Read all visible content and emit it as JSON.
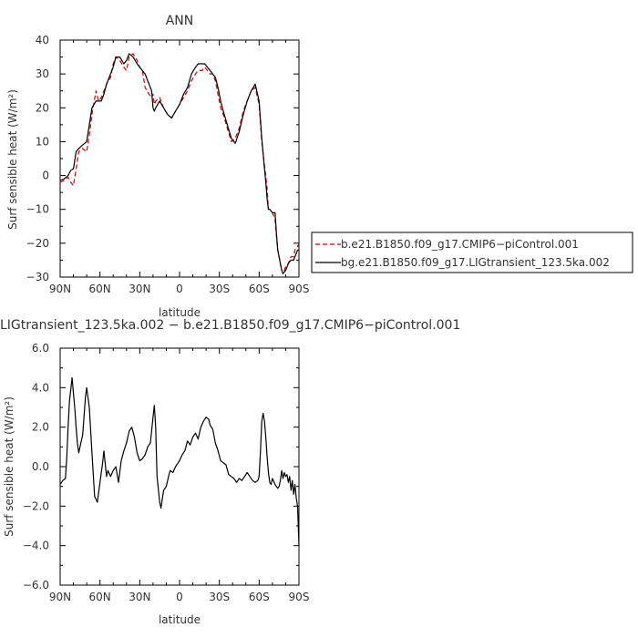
{
  "chart_data": [
    {
      "type": "line",
      "title": "ANN",
      "xlabel": "latitude",
      "ylabel": "Surf sensible heat (W/m²)",
      "xlim": [
        90,
        -90
      ],
      "ylim": [
        -30,
        40
      ],
      "xticks": [
        90,
        60,
        30,
        0,
        -30,
        -60,
        -90
      ],
      "xtick_labels": [
        "90N",
        "60N",
        "30N",
        "0",
        "30S",
        "60S",
        "90S"
      ],
      "yticks": [
        40,
        30,
        20,
        10,
        0,
        -10,
        -20,
        -30
      ],
      "ytick_labels": [
        "40",
        "30",
        "20",
        "10",
        "0",
        "−10",
        "−20",
        "−30"
      ],
      "legend_position": "right",
      "series": [
        {
          "name": "b.e21.B1850.f09_g17.CMIP6−piControl.001",
          "color": "#cc0000",
          "style": "dashed",
          "x": [
            90,
            87,
            84,
            82,
            80,
            78,
            76,
            73,
            70,
            68,
            66,
            63,
            61,
            59,
            57,
            55,
            52,
            50,
            48,
            45,
            42,
            40,
            38,
            35,
            32,
            30,
            28,
            26,
            23,
            21,
            20,
            19,
            18,
            15,
            12,
            9,
            6,
            3,
            0,
            -3,
            -6,
            -9,
            -12,
            -14,
            -17,
            -19,
            -21,
            -23,
            -25,
            -27,
            -29,
            -31,
            -33,
            -36,
            -39,
            -42,
            -45,
            -48,
            -51,
            -54,
            -57,
            -60,
            -62,
            -64,
            -65,
            -66,
            -67,
            -68,
            -70,
            -72,
            -73,
            -74,
            -75,
            -76,
            -77,
            -78,
            -80,
            -82,
            -84,
            -86,
            -87,
            -89,
            -90
          ],
          "y": [
            -2,
            -1.5,
            -0.5,
            -2,
            -3,
            2,
            7,
            8,
            7,
            12,
            18,
            25,
            22,
            23,
            25,
            27,
            29,
            33,
            35,
            34,
            32,
            31,
            35,
            36,
            34,
            32,
            31,
            26,
            24,
            23,
            24,
            21,
            22,
            23,
            20,
            18,
            17,
            19,
            21,
            23,
            25,
            28,
            30,
            31,
            31,
            32,
            31,
            30,
            30,
            28,
            24,
            20,
            18,
            14,
            10,
            11,
            14,
            19,
            22,
            25,
            26,
            21,
            10,
            3,
            0,
            -4,
            -10,
            -10,
            -11,
            -13,
            -18,
            -22,
            -24,
            -26,
            -28,
            -29,
            -27,
            -26,
            -24,
            -24,
            -22,
            -21,
            -20
          ]
        },
        {
          "name": "bg.e21.B1850.f09_g17.LIGtransient_123.5ka.002",
          "color": "#000000",
          "style": "solid",
          "x": [
            90,
            87,
            84,
            82,
            80,
            78,
            76,
            73,
            70,
            68,
            66,
            63,
            61,
            59,
            57,
            55,
            52,
            50,
            48,
            45,
            42,
            40,
            38,
            35,
            32,
            30,
            28,
            26,
            23,
            21,
            20,
            19,
            18,
            15,
            12,
            9,
            6,
            3,
            0,
            -3,
            -6,
            -9,
            -12,
            -14,
            -17,
            -19,
            -21,
            -23,
            -25,
            -27,
            -29,
            -31,
            -33,
            -36,
            -39,
            -42,
            -45,
            -48,
            -51,
            -54,
            -57,
            -60,
            -62,
            -64,
            -65,
            -66,
            -67,
            -68,
            -70,
            -72,
            -73,
            -74,
            -75,
            -76,
            -77,
            -78,
            -80,
            -82,
            -84,
            -86,
            -87,
            -89,
            -90
          ],
          "y": [
            -1.5,
            -1,
            0,
            1.5,
            2,
            7,
            8,
            9,
            10,
            15,
            20,
            22,
            22,
            22,
            24,
            27,
            30,
            32,
            35,
            35,
            33,
            34,
            36,
            35,
            33,
            32,
            31,
            30,
            27,
            25,
            20,
            19,
            20,
            22,
            20,
            18,
            17,
            19,
            21,
            24,
            26,
            30,
            32,
            33,
            33,
            33,
            32,
            31,
            30,
            29,
            26,
            22,
            19,
            15,
            11,
            9.5,
            13,
            18,
            22,
            25,
            27,
            22,
            11,
            2,
            -2,
            -7,
            -10,
            -10,
            -11,
            -11,
            -17,
            -22,
            -24,
            -26,
            -28,
            -29,
            -28,
            -26,
            -25,
            -25,
            -24,
            -22,
            -22
          ]
        }
      ]
    },
    {
      "type": "line",
      "title": "LIGtransient_123.5ka.002 − b.e21.B1850.f09_g17.CMIP6−piControl.001",
      "xlabel": "latitude",
      "ylabel": "Surf sensible heat (W/m²)",
      "xlim": [
        90,
        -90
      ],
      "ylim": [
        -6,
        6
      ],
      "xticks": [
        90,
        60,
        30,
        0,
        -30,
        -60,
        -90
      ],
      "xtick_labels": [
        "90N",
        "60N",
        "30N",
        "0",
        "30S",
        "60S",
        "90S"
      ],
      "yticks": [
        6,
        4,
        2,
        0,
        -2,
        -4,
        -6
      ],
      "ytick_labels": [
        "6.0",
        "4.0",
        "2.0",
        "0.0",
        "−2.0",
        "−4.0",
        "−6.0"
      ],
      "series": [
        {
          "color": "#000000",
          "style": "solid",
          "x": [
            90,
            88,
            86,
            85,
            84,
            83,
            81,
            80,
            79,
            78,
            77,
            76,
            75,
            73,
            71,
            70,
            68,
            66,
            64,
            62,
            60,
            58,
            57,
            55,
            54,
            52,
            50,
            48,
            46,
            44,
            42,
            40,
            38,
            36,
            34,
            32,
            30,
            28,
            26,
            24,
            22,
            20,
            19,
            18,
            17,
            15,
            14,
            12,
            10,
            9,
            8,
            7,
            5,
            3,
            1,
            0,
            -2,
            -4,
            -6,
            -8,
            -10,
            -12,
            -14,
            -16,
            -18,
            -20,
            -22,
            -23,
            -25,
            -27,
            -29,
            -31,
            -33,
            -35,
            -37,
            -39,
            -41,
            -43,
            -45,
            -47,
            -49,
            -51,
            -53,
            -55,
            -57,
            -59,
            -60,
            -61,
            -62,
            -63,
            -64,
            -65,
            -66,
            -67,
            -68,
            -69,
            -70,
            -72,
            -74,
            -75,
            -76,
            -77,
            -78,
            -79,
            -80,
            -81,
            -82,
            -83,
            -84,
            -85,
            -86,
            -87,
            -88,
            -89,
            -90
          ],
          "y": [
            -0.9,
            -0.7,
            -0.6,
            0.5,
            2,
            3.3,
            4.5,
            3.7,
            3.0,
            2.0,
            1.2,
            0.7,
            1.0,
            1.6,
            3.5,
            4.0,
            3.0,
            0.7,
            -1.5,
            -1.8,
            -0.8,
            0.2,
            0.8,
            -0.5,
            -0.2,
            -0.5,
            -0.2,
            0,
            -0.8,
            0.3,
            0.8,
            1.2,
            1.8,
            2.0,
            1.5,
            0.7,
            0.3,
            0.4,
            0.6,
            1.0,
            1.2,
            2.5,
            3.1,
            2.0,
            -0.5,
            -1.8,
            -2.1,
            -1.2,
            -1.0,
            -0.7,
            -0.4,
            -0.2,
            -0.3,
            0.0,
            0.2,
            0.3,
            0.6,
            0.8,
            1.3,
            1.1,
            1.5,
            1.7,
            1.4,
            2.0,
            2.3,
            2.5,
            2.4,
            2.1,
            1.9,
            1.2,
            0.8,
            0.3,
            0.2,
            0.1,
            -0.4,
            -0.5,
            -0.6,
            -0.8,
            -0.6,
            -0.7,
            -0.5,
            -0.3,
            -0.5,
            -0.7,
            -0.8,
            -0.7,
            -0.5,
            0.8,
            2.3,
            2.7,
            2.3,
            1.5,
            0.5,
            -0.3,
            -0.8,
            -0.9,
            -0.6,
            -0.9,
            -1.1,
            -1.0,
            -0.7,
            -0.2,
            -0.6,
            -0.3,
            -0.5,
            -0.4,
            -0.8,
            -0.5,
            -1.2,
            -0.7,
            -1.4,
            -0.9,
            -1.6,
            -2.0,
            -4.0
          ]
        }
      ]
    }
  ]
}
